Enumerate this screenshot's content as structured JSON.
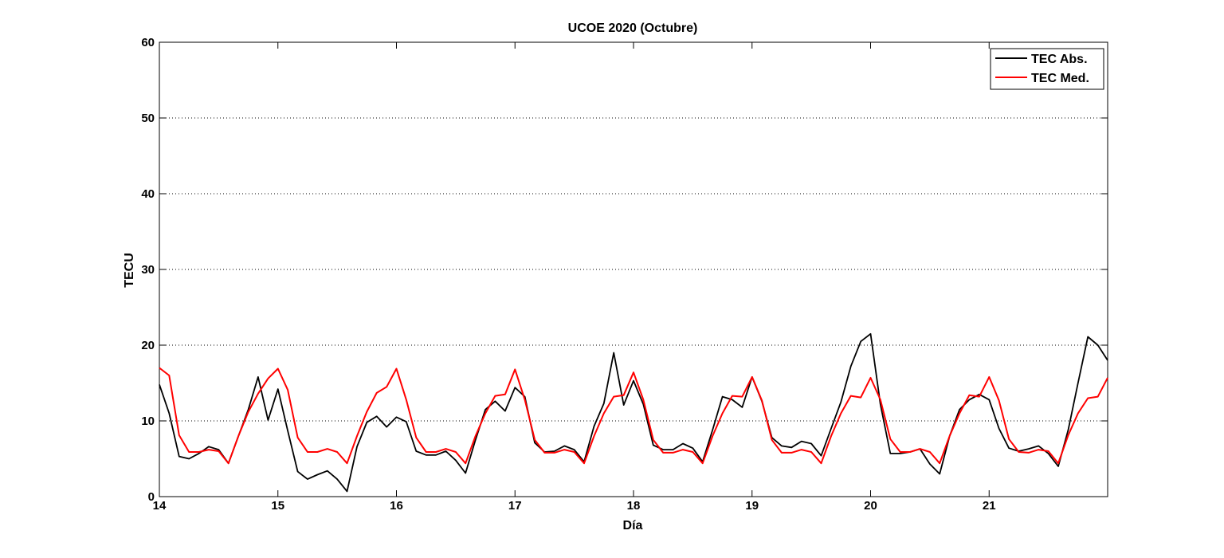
{
  "chart_data": {
    "type": "line",
    "title": "UCOE 2020 (Octubre)",
    "xlabel": "Día",
    "ylabel": "TECU",
    "xlim": [
      14,
      22
    ],
    "ylim": [
      0,
      60
    ],
    "x_ticks": [
      14,
      15,
      16,
      17,
      18,
      19,
      20,
      21
    ],
    "x_tick_labels": [
      "14",
      "15",
      "16",
      "17",
      "18",
      "19",
      "20",
      "21"
    ],
    "y_ticks": [
      0,
      10,
      20,
      30,
      40,
      50,
      60
    ],
    "y_tick_labels": [
      "0",
      "10",
      "20",
      "30",
      "40",
      "50",
      "60"
    ],
    "grid": "y-dotted",
    "legend_position": "top-right",
    "series": [
      {
        "name": "TEC Abs.",
        "color": "#000000",
        "x": [
          14.0,
          14.083,
          14.167,
          14.25,
          14.333,
          14.417,
          14.5,
          14.583,
          14.667,
          14.75,
          14.833,
          14.917,
          15.0,
          15.083,
          15.167,
          15.25,
          15.333,
          15.417,
          15.5,
          15.583,
          15.667,
          15.75,
          15.833,
          15.917,
          16.0,
          16.083,
          16.167,
          16.25,
          16.333,
          16.417,
          16.5,
          16.583,
          16.667,
          16.75,
          16.833,
          16.917,
          17.0,
          17.083,
          17.167,
          17.25,
          17.333,
          17.417,
          17.5,
          17.583,
          17.667,
          17.75,
          17.833,
          17.917,
          18.0,
          18.083,
          18.167,
          18.25,
          18.333,
          18.417,
          18.5,
          18.583,
          18.667,
          18.75,
          18.833,
          18.917,
          19.0,
          19.083,
          19.167,
          19.25,
          19.333,
          19.417,
          19.5,
          19.583,
          19.667,
          19.75,
          19.833,
          19.917,
          20.0,
          20.083,
          20.167,
          20.25,
          20.333,
          20.417,
          20.5,
          20.583,
          20.667,
          20.75,
          20.833,
          20.917,
          21.0,
          21.083,
          21.167,
          21.25,
          21.333,
          21.417,
          21.5,
          21.583,
          21.667,
          21.75,
          21.833,
          21.917,
          22.0
        ],
        "y": [
          14.8,
          11.0,
          5.3,
          5.0,
          5.7,
          6.6,
          6.2,
          4.4,
          8.0,
          11.5,
          15.8,
          10.1,
          14.2,
          8.7,
          3.3,
          2.3,
          2.9,
          3.4,
          2.3,
          0.7,
          6.6,
          9.8,
          10.6,
          9.2,
          10.5,
          9.9,
          6.0,
          5.5,
          5.5,
          6.0,
          4.8,
          3.1,
          7.5,
          11.5,
          12.6,
          11.3,
          14.4,
          13.2,
          7.1,
          5.9,
          6.0,
          6.7,
          6.2,
          4.6,
          9.3,
          12.3,
          19.0,
          12.1,
          15.3,
          12.2,
          6.8,
          6.2,
          6.2,
          7.0,
          6.4,
          4.6,
          8.8,
          13.2,
          12.8,
          11.8,
          15.8,
          12.6,
          7.8,
          6.7,
          6.5,
          7.3,
          7.0,
          5.4,
          9.0,
          12.5,
          17.2,
          20.5,
          21.5,
          12.2,
          5.7,
          5.7,
          5.9,
          6.3,
          4.3,
          3.0,
          8.0,
          11.5,
          12.8,
          13.5,
          12.8,
          9.0,
          6.4,
          6.0,
          6.3,
          6.7,
          5.7,
          4.0,
          8.8,
          15.0,
          21.1,
          20.0,
          18.0
        ]
      },
      {
        "name": "TEC Med.",
        "color": "#ff0000",
        "x": [
          14.0,
          14.083,
          14.167,
          14.25,
          14.333,
          14.417,
          14.5,
          14.583,
          14.667,
          14.75,
          14.833,
          14.917,
          15.0,
          15.083,
          15.167,
          15.25,
          15.333,
          15.417,
          15.5,
          15.583,
          15.667,
          15.75,
          15.833,
          15.917,
          16.0,
          16.083,
          16.167,
          16.25,
          16.333,
          16.417,
          16.5,
          16.583,
          16.667,
          16.75,
          16.833,
          16.917,
          17.0,
          17.083,
          17.167,
          17.25,
          17.333,
          17.417,
          17.5,
          17.583,
          17.667,
          17.75,
          17.833,
          17.917,
          18.0,
          18.083,
          18.167,
          18.25,
          18.333,
          18.417,
          18.5,
          18.583,
          18.667,
          18.75,
          18.833,
          18.917,
          19.0,
          19.083,
          19.167,
          19.25,
          19.333,
          19.417,
          19.5,
          19.583,
          19.667,
          19.75,
          19.833,
          19.917,
          20.0,
          20.083,
          20.167,
          20.25,
          20.333,
          20.417,
          20.5,
          20.583,
          20.667,
          20.75,
          20.833,
          20.917,
          21.0,
          21.083,
          21.167,
          21.25,
          21.333,
          21.417,
          21.5,
          21.583,
          21.667,
          21.75,
          21.833,
          21.917,
          22.0
        ],
        "y": [
          17.0,
          16.0,
          8.1,
          5.9,
          5.9,
          6.2,
          6.0,
          4.4,
          8.0,
          11.2,
          13.6,
          15.6,
          16.9,
          14.1,
          7.8,
          5.9,
          5.9,
          6.3,
          5.9,
          4.4,
          8.0,
          11.2,
          13.7,
          14.5,
          16.9,
          12.8,
          7.8,
          5.9,
          5.9,
          6.3,
          5.9,
          4.4,
          8.0,
          11.0,
          13.3,
          13.5,
          16.8,
          12.8,
          7.5,
          5.8,
          5.8,
          6.2,
          5.9,
          4.4,
          8.0,
          11.0,
          13.2,
          13.4,
          16.4,
          12.8,
          7.5,
          5.8,
          5.8,
          6.2,
          5.9,
          4.4,
          8.0,
          11.0,
          13.3,
          13.2,
          15.8,
          12.7,
          7.5,
          5.8,
          5.8,
          6.2,
          5.9,
          4.4,
          8.0,
          11.0,
          13.3,
          13.1,
          15.7,
          12.8,
          7.6,
          5.9,
          5.9,
          6.3,
          5.9,
          4.4,
          8.0,
          11.0,
          13.4,
          13.2,
          15.8,
          12.7,
          7.6,
          5.9,
          5.8,
          6.2,
          6.0,
          4.4,
          8.1,
          11.0,
          13.0,
          13.2,
          15.7
        ]
      }
    ]
  }
}
